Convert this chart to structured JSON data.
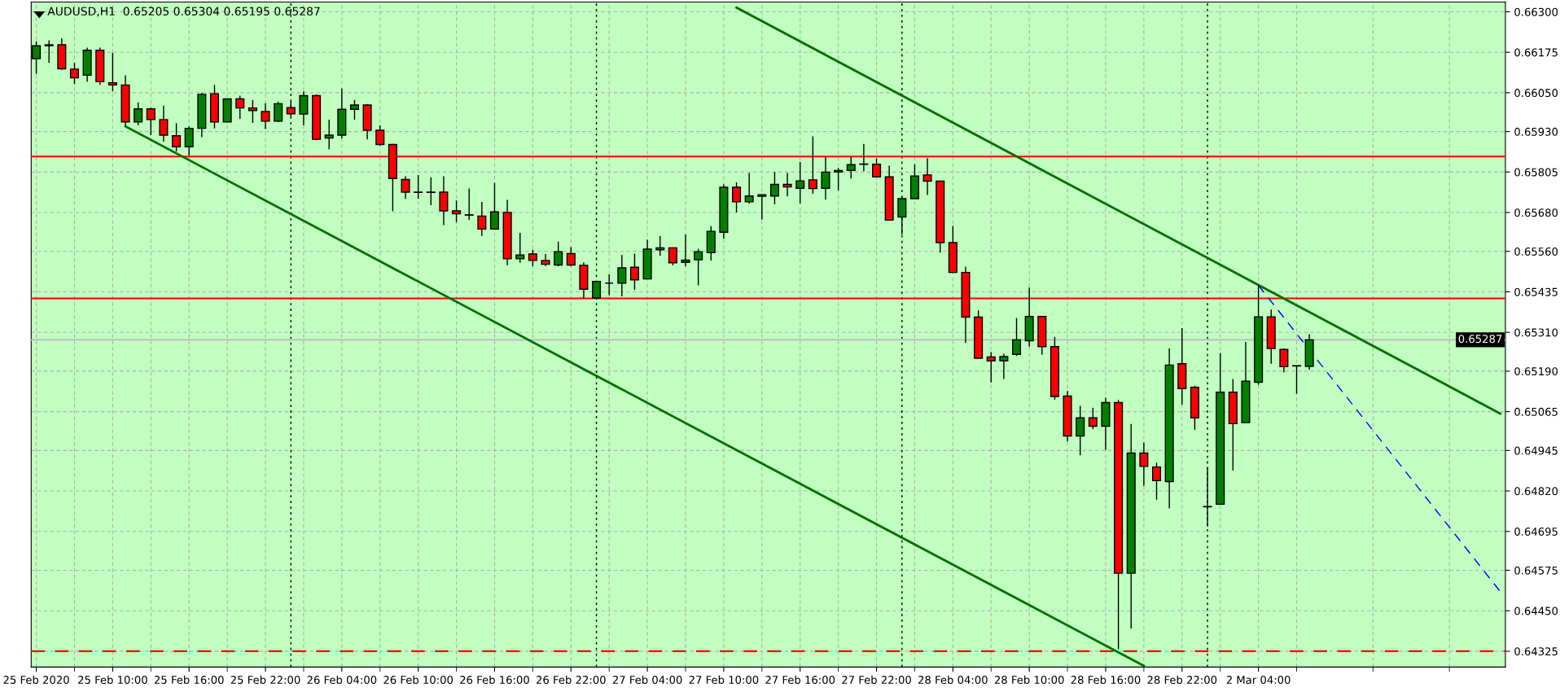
{
  "chart_data": {
    "type": "candlestick",
    "title": "AUDUSD,H1  0.65205 0.65304 0.65195 0.65287",
    "categories": [
      "25 Feb 2020",
      null,
      null,
      null,
      null,
      null,
      "25 Feb 10:00",
      null,
      null,
      null,
      null,
      null,
      "25 Feb 16:00",
      null,
      null,
      null,
      null,
      null,
      "25 Feb 22:00",
      null,
      null,
      null,
      null,
      null,
      "26 Feb 04:00",
      null,
      null,
      null,
      null,
      null,
      "26 Feb 10:00",
      null,
      null,
      null,
      null,
      null,
      "26 Feb 16:00",
      null,
      null,
      null,
      null,
      null,
      "26 Feb 22:00",
      null,
      null,
      null,
      null,
      null,
      "27 Feb 04:00",
      null,
      null,
      null,
      null,
      null,
      "27 Feb 10:00",
      null,
      null,
      null,
      null,
      null,
      "27 Feb 16:00",
      null,
      null,
      null,
      null,
      null,
      "27 Feb 22:00",
      null,
      null,
      null,
      null,
      null,
      "28 Feb 04:00",
      null,
      null,
      null,
      null,
      null,
      "28 Feb 10:00",
      null,
      null,
      null,
      null,
      null,
      "28 Feb 16:00",
      null,
      null,
      null,
      null,
      null,
      "28 Feb 22:00",
      null,
      null,
      null,
      null,
      null,
      "2 Mar 04:00",
      null,
      null,
      null,
      null,
      null,
      null,
      null,
      null,
      null,
      null,
      null,
      null,
      null,
      null,
      null,
      null,
      null,
      null,
      null
    ],
    "ohlc": [
      [
        0.66155,
        0.66209,
        0.66108,
        0.66195
      ],
      [
        0.66195,
        0.66212,
        0.66142,
        0.66198
      ],
      [
        0.66198,
        0.66218,
        0.66121,
        0.66124
      ],
      [
        0.66123,
        0.66142,
        0.66077,
        0.66096
      ],
      [
        0.66104,
        0.66189,
        0.66084,
        0.66181
      ],
      [
        0.66181,
        0.66189,
        0.66074,
        0.66084
      ],
      [
        0.66081,
        0.66173,
        0.66054,
        0.66074
      ],
      [
        0.66074,
        0.66104,
        0.65949,
        0.6596
      ],
      [
        0.6596,
        0.6602,
        0.65949,
        0.66
      ],
      [
        0.66,
        0.66003,
        0.65919,
        0.65967
      ],
      [
        0.65967,
        0.6601,
        0.65899,
        0.65919
      ],
      [
        0.65917,
        0.65956,
        0.65868,
        0.65883
      ],
      [
        0.65883,
        0.65946,
        0.65856,
        0.6594
      ],
      [
        0.6594,
        0.6605,
        0.65913,
        0.66045
      ],
      [
        0.66047,
        0.66074,
        0.6594,
        0.6596
      ],
      [
        0.6596,
        0.66031,
        0.6596,
        0.66031
      ],
      [
        0.66031,
        0.66041,
        0.65969,
        0.66003
      ],
      [
        0.66003,
        0.66027,
        0.65957,
        0.65995
      ],
      [
        0.65992,
        0.66018,
        0.65938,
        0.65962
      ],
      [
        0.65962,
        0.66023,
        0.6596,
        0.66016
      ],
      [
        0.66004,
        0.66023,
        0.65977,
        0.65985
      ],
      [
        0.65984,
        0.66054,
        0.65949,
        0.66041
      ],
      [
        0.66041,
        0.66045,
        0.65903,
        0.65906
      ],
      [
        0.6591,
        0.65967,
        0.65875,
        0.65919
      ],
      [
        0.65919,
        0.66063,
        0.65909,
        0.65999
      ],
      [
        0.65999,
        0.66028,
        0.65967,
        0.66012
      ],
      [
        0.66012,
        0.66015,
        0.65906,
        0.65934
      ],
      [
        0.65934,
        0.65949,
        0.65886,
        0.6589
      ],
      [
        0.6589,
        0.65892,
        0.65684,
        0.65785
      ],
      [
        0.65782,
        0.65792,
        0.65722,
        0.65743
      ],
      [
        0.65743,
        0.65796,
        0.65722,
        0.65742
      ],
      [
        0.65743,
        0.65789,
        0.65703,
        0.65742
      ],
      [
        0.65743,
        0.65792,
        0.65641,
        0.65685
      ],
      [
        0.65685,
        0.65717,
        0.6565,
        0.65676
      ],
      [
        0.65673,
        0.65754,
        0.65657,
        0.65672
      ],
      [
        0.65669,
        0.65713,
        0.65608,
        0.65629
      ],
      [
        0.65629,
        0.65771,
        0.65629,
        0.65682
      ],
      [
        0.6568,
        0.65719,
        0.65517,
        0.65537
      ],
      [
        0.65537,
        0.65617,
        0.65525,
        0.65549
      ],
      [
        0.65552,
        0.65565,
        0.65514,
        0.65532
      ],
      [
        0.65532,
        0.65552,
        0.65514,
        0.6552
      ],
      [
        0.65518,
        0.6559,
        0.65514,
        0.65559
      ],
      [
        0.65553,
        0.65573,
        0.65514,
        0.65518
      ],
      [
        0.65517,
        0.65526,
        0.65415,
        0.65443
      ],
      [
        0.65416,
        0.65467,
        0.65416,
        0.65467
      ],
      [
        0.65462,
        0.65489,
        0.65424,
        0.65462
      ],
      [
        0.65462,
        0.65549,
        0.65421,
        0.65509
      ],
      [
        0.65511,
        0.65553,
        0.65441,
        0.65472
      ],
      [
        0.65475,
        0.65596,
        0.65474,
        0.65567
      ],
      [
        0.65565,
        0.65607,
        0.65546,
        0.65571
      ],
      [
        0.65571,
        0.65571,
        0.65517,
        0.65525
      ],
      [
        0.65526,
        0.65612,
        0.65514,
        0.65533
      ],
      [
        0.65534,
        0.65568,
        0.65455,
        0.65559
      ],
      [
        0.65556,
        0.65638,
        0.65532,
        0.65622
      ],
      [
        0.65619,
        0.65767,
        0.65599,
        0.65758
      ],
      [
        0.65758,
        0.65773,
        0.6568,
        0.65713
      ],
      [
        0.65713,
        0.65802,
        0.65708,
        0.65731
      ],
      [
        0.6573,
        0.65736,
        0.65658,
        0.65735
      ],
      [
        0.65731,
        0.65805,
        0.65705,
        0.65767
      ],
      [
        0.65767,
        0.65802,
        0.6573,
        0.65759
      ],
      [
        0.65755,
        0.65836,
        0.65708,
        0.65778
      ],
      [
        0.65781,
        0.65915,
        0.65738,
        0.65754
      ],
      [
        0.65755,
        0.65852,
        0.6572,
        0.65805
      ],
      [
        0.65805,
        0.65818,
        0.65748,
        0.6581
      ],
      [
        0.6581,
        0.65851,
        0.65785,
        0.65828
      ],
      [
        0.65829,
        0.65892,
        0.65808,
        0.6583
      ],
      [
        0.65829,
        0.65847,
        0.6579,
        0.6579
      ],
      [
        0.6579,
        0.65825,
        0.65657,
        0.65657
      ],
      [
        0.65666,
        0.65728,
        0.65612,
        0.65723
      ],
      [
        0.65723,
        0.65829,
        0.65723,
        0.65793
      ],
      [
        0.65796,
        0.65848,
        0.65734,
        0.65777
      ],
      [
        0.65777,
        0.65777,
        0.65556,
        0.65587
      ],
      [
        0.65587,
        0.65639,
        0.65495,
        0.65495
      ],
      [
        0.65495,
        0.65513,
        0.65277,
        0.65357
      ],
      [
        0.65357,
        0.65378,
        0.65229,
        0.6523
      ],
      [
        0.65234,
        0.65249,
        0.65155,
        0.65222
      ],
      [
        0.65222,
        0.65244,
        0.65166,
        0.65235
      ],
      [
        0.65242,
        0.65354,
        0.65237,
        0.65287
      ],
      [
        0.65284,
        0.65448,
        0.65266,
        0.65359
      ],
      [
        0.65359,
        0.65359,
        0.65241,
        0.65266
      ],
      [
        0.65266,
        0.65296,
        0.65102,
        0.65112
      ],
      [
        0.65113,
        0.65129,
        0.64973,
        0.6499
      ],
      [
        0.6499,
        0.65083,
        0.6493,
        0.65046
      ],
      [
        0.65046,
        0.65077,
        0.65011,
        0.6502
      ],
      [
        0.6502,
        0.65108,
        0.64947,
        0.65093
      ],
      [
        0.65093,
        0.65101,
        0.64331,
        0.64566
      ],
      [
        0.64566,
        0.65027,
        0.64395,
        0.64937
      ],
      [
        0.64937,
        0.6497,
        0.64836,
        0.64896
      ],
      [
        0.64894,
        0.64907,
        0.64793,
        0.64852
      ],
      [
        0.64849,
        0.6526,
        0.64766,
        0.65209
      ],
      [
        0.65213,
        0.65323,
        0.65087,
        0.65136
      ],
      [
        0.6514,
        0.65145,
        0.65009,
        0.65046
      ],
      [
        0.64772,
        0.64892,
        0.6471,
        0.64771
      ],
      [
        0.64779,
        0.65246,
        0.64779,
        0.65125
      ],
      [
        0.65125,
        0.65166,
        0.64883,
        0.65028
      ],
      [
        0.65031,
        0.6528,
        0.65031,
        0.65159
      ],
      [
        0.65156,
        0.65455,
        0.65148,
        0.65358
      ],
      [
        0.65358,
        0.6538,
        0.65213,
        0.6526
      ],
      [
        0.65257,
        0.6526,
        0.65186,
        0.65204
      ],
      [
        0.65207,
        0.65207,
        0.6512,
        0.65206
      ],
      [
        0.65205,
        0.65304,
        0.65195,
        0.65287
      ],
      null,
      null,
      null,
      null,
      null,
      null,
      null,
      null,
      null,
      null,
      null,
      null,
      null,
      null,
      null
    ],
    "colors": [
      "#008000",
      "#008000",
      "#ff0000",
      "#ff0000",
      "#008000",
      "#ff0000",
      "#ff0000",
      "#ff0000",
      "#008000",
      "#ff0000",
      "#ff0000",
      "#ff0000",
      "#008000",
      "#008000",
      "#ff0000",
      "#008000",
      "#ff0000",
      "#ff0000",
      "#ff0000",
      "#008000",
      "#ff0000",
      "#008000",
      "#ff0000",
      "#008000",
      "#008000",
      "#008000",
      "#ff0000",
      "#ff0000",
      "#ff0000",
      "#ff0000",
      "#000000",
      "#000000",
      "#ff0000",
      "#ff0000",
      "#000000",
      "#ff0000",
      "#008000",
      "#ff0000",
      "#008000",
      "#ff0000",
      "#ff0000",
      "#008000",
      "#ff0000",
      "#ff0000",
      "#008000",
      "#000000",
      "#008000",
      "#ff0000",
      "#008000",
      "#008000",
      "#ff0000",
      "#008000",
      "#008000",
      "#008000",
      "#008000",
      "#ff0000",
      "#008000",
      "#008000",
      "#008000",
      "#ff0000",
      "#008000",
      "#ff0000",
      "#008000",
      "#008000",
      "#008000",
      "#000000",
      "#ff0000",
      "#ff0000",
      "#008000",
      "#008000",
      "#ff0000",
      "#ff0000",
      "#ff0000",
      "#ff0000",
      "#ff0000",
      "#ff0000",
      "#008000",
      "#008000",
      "#008000",
      "#ff0000",
      "#ff0000",
      "#ff0000",
      "#008000",
      "#ff0000",
      "#008000",
      "#ff0000",
      "#008000",
      "#ff0000",
      "#ff0000",
      "#008000",
      "#ff0000",
      "#ff0000",
      "#000000",
      "#008000",
      "#ff0000",
      "#008000",
      "#008000",
      "#ff0000",
      "#ff0000",
      "#000000",
      "#008000",
      null,
      null,
      null,
      null,
      null,
      null,
      null,
      null,
      null,
      null,
      null,
      null,
      null,
      null,
      null
    ],
    "series": [
      {
        "type": "line",
        "color": "#007000",
        "line_style": "solid",
        "values": [
          null,
          null,
          null,
          null,
          null,
          null,
          null,
          0.65946,
          null,
          null,
          null,
          null,
          null,
          null,
          null,
          null,
          null,
          null,
          null,
          null,
          null,
          null,
          null,
          null,
          null,
          null,
          null,
          null,
          null,
          null,
          null,
          null,
          null,
          null,
          null,
          null,
          null,
          null,
          null,
          null,
          null,
          null,
          null,
          null,
          null,
          null,
          null,
          null,
          null,
          null,
          null,
          null,
          null,
          null,
          null,
          null,
          null,
          null,
          null,
          null,
          null,
          null,
          null,
          null,
          null,
          null,
          null,
          null,
          null,
          null,
          null,
          null,
          null,
          null,
          null,
          null,
          null,
          null,
          null,
          null,
          null,
          null,
          null,
          null,
          null,
          null,
          null,
          0.6428,
          null,
          null,
          null,
          null,
          null,
          null,
          null,
          null,
          null,
          null,
          null,
          null,
          null,
          null,
          null,
          null,
          null,
          null,
          null,
          null,
          null,
          null,
          null,
          null,
          null,
          null,
          null,
          null
        ]
      },
      {
        "type": "line",
        "color": "#007000",
        "line_style": "solid",
        "values": [
          null,
          null,
          null,
          null,
          null,
          null,
          null,
          null,
          null,
          null,
          null,
          null,
          null,
          null,
          null,
          null,
          null,
          null,
          null,
          null,
          null,
          null,
          null,
          null,
          null,
          null,
          null,
          null,
          null,
          null,
          null,
          null,
          null,
          null,
          null,
          null,
          null,
          null,
          null,
          null,
          null,
          null,
          null,
          null,
          null,
          null,
          null,
          null,
          null,
          null,
          null,
          null,
          null,
          null,
          null,
          0.66313,
          null,
          null,
          null,
          null,
          null,
          null,
          null,
          null,
          null,
          null,
          null,
          null,
          null,
          null,
          null,
          null,
          null,
          null,
          null,
          null,
          null,
          null,
          null,
          null,
          null,
          null,
          null,
          null,
          null,
          null,
          null,
          null,
          null,
          null,
          null,
          null,
          null,
          null,
          null,
          null,
          null,
          null,
          null,
          null,
          null,
          null,
          null,
          null,
          null,
          null,
          null,
          null,
          null,
          null,
          null,
          null,
          null,
          null,
          null,
          0.65059
        ]
      },
      {
        "type": "line",
        "color": "#0000ff",
        "line_style": "dashed",
        "values": [
          null,
          null,
          null,
          null,
          null,
          null,
          null,
          null,
          null,
          null,
          null,
          null,
          null,
          null,
          null,
          null,
          null,
          null,
          null,
          null,
          null,
          null,
          null,
          null,
          null,
          null,
          null,
          null,
          null,
          null,
          null,
          null,
          null,
          null,
          null,
          null,
          null,
          null,
          null,
          null,
          null,
          null,
          null,
          null,
          null,
          null,
          null,
          null,
          null,
          null,
          null,
          null,
          null,
          null,
          null,
          null,
          null,
          null,
          null,
          null,
          null,
          null,
          null,
          null,
          null,
          null,
          null,
          null,
          null,
          null,
          null,
          null,
          null,
          null,
          null,
          null,
          null,
          null,
          null,
          null,
          null,
          null,
          null,
          null,
          null,
          null,
          null,
          null,
          null,
          null,
          null,
          null,
          null,
          null,
          null,
          null,
          0.65455,
          null,
          null,
          null,
          null,
          null,
          null,
          null,
          null,
          null,
          null,
          null,
          null,
          null,
          null,
          null,
          null,
          null,
          null,
          0.64509
        ]
      }
    ],
    "ref_lines": [
      {
        "axis": "y",
        "value": 0.65853,
        "color": "#ff0000",
        "line_style": "solid"
      },
      {
        "axis": "y",
        "value": 0.65415,
        "color": "#ff0000",
        "line_style": "solid"
      },
      {
        "axis": "y",
        "value": 0.64325,
        "color": "#ff0000",
        "line_style": "dashed"
      },
      {
        "axis": "y",
        "value": 0.65287,
        "color": "#c0c0c0",
        "line_style": "solid",
        "label": "0.65287"
      }
    ],
    "ylim": [
      0.64276,
      0.6633
    ],
    "yticks": [
      {
        "value": 0.663,
        "label": "0.66300"
      },
      {
        "value": 0.66175,
        "label": "0.66175"
      },
      {
        "value": 0.6605,
        "label": "0.66050"
      },
      {
        "value": 0.6593,
        "label": "0.65930"
      },
      {
        "value": 0.65805,
        "label": "0.65805"
      },
      {
        "value": 0.6568,
        "label": "0.65680"
      },
      {
        "value": 0.6556,
        "label": "0.65560"
      },
      {
        "value": 0.65435,
        "label": "0.65435"
      },
      {
        "value": 0.6531,
        "label": "0.65310"
      },
      {
        "value": 0.6519,
        "label": "0.65190"
      },
      {
        "value": 0.65065,
        "label": "0.65065"
      },
      {
        "value": 0.64945,
        "label": "0.64945"
      },
      {
        "value": 0.6482,
        "label": "0.64820"
      },
      {
        "value": 0.64695,
        "label": "0.64695"
      },
      {
        "value": 0.64575,
        "label": "0.64575"
      },
      {
        "value": 0.6445,
        "label": "0.64450"
      },
      {
        "value": 0.64325,
        "label": "0.64325"
      }
    ],
    "grid": true
  }
}
